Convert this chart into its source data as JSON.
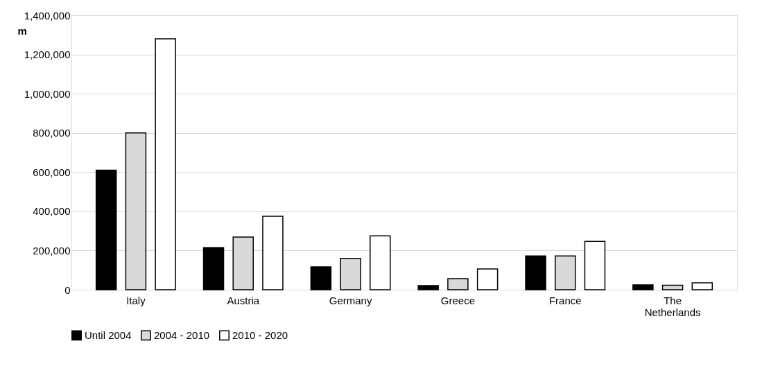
{
  "chart_data": {
    "type": "bar",
    "ylabel": "m",
    "categories": [
      "Italy",
      "Austria",
      "Germany",
      "Greece",
      "France",
      "The Netherlands"
    ],
    "series": [
      {
        "name": "Until 2004",
        "color": "#000000",
        "values": [
          610000,
          215000,
          117000,
          21000,
          172000,
          25000
        ]
      },
      {
        "name": "2004 - 2010",
        "color": "#d9d9d9",
        "values": [
          800000,
          269000,
          160000,
          57000,
          172000,
          23000
        ]
      },
      {
        "name": "2010 - 2020",
        "color": "#ffffff",
        "values": [
          1280000,
          375000,
          275000,
          106000,
          247000,
          35000
        ]
      }
    ],
    "ylim": [
      0,
      1400000
    ],
    "yticks": [
      0,
      {
        "value": 200000,
        "label": "200,000"
      },
      {
        "value": 400000,
        "label": "400,000"
      },
      {
        "value": 600000,
        "label": "600,000"
      },
      {
        "value": 800000,
        "label": "800,000"
      },
      {
        "value": 1000000,
        "label": "1,000,000"
      },
      {
        "value": 1200000,
        "label": "1,200,000"
      },
      {
        "value": 1400000,
        "label": "1,400,000"
      }
    ],
    "grid": "y",
    "legend": "bottom"
  }
}
